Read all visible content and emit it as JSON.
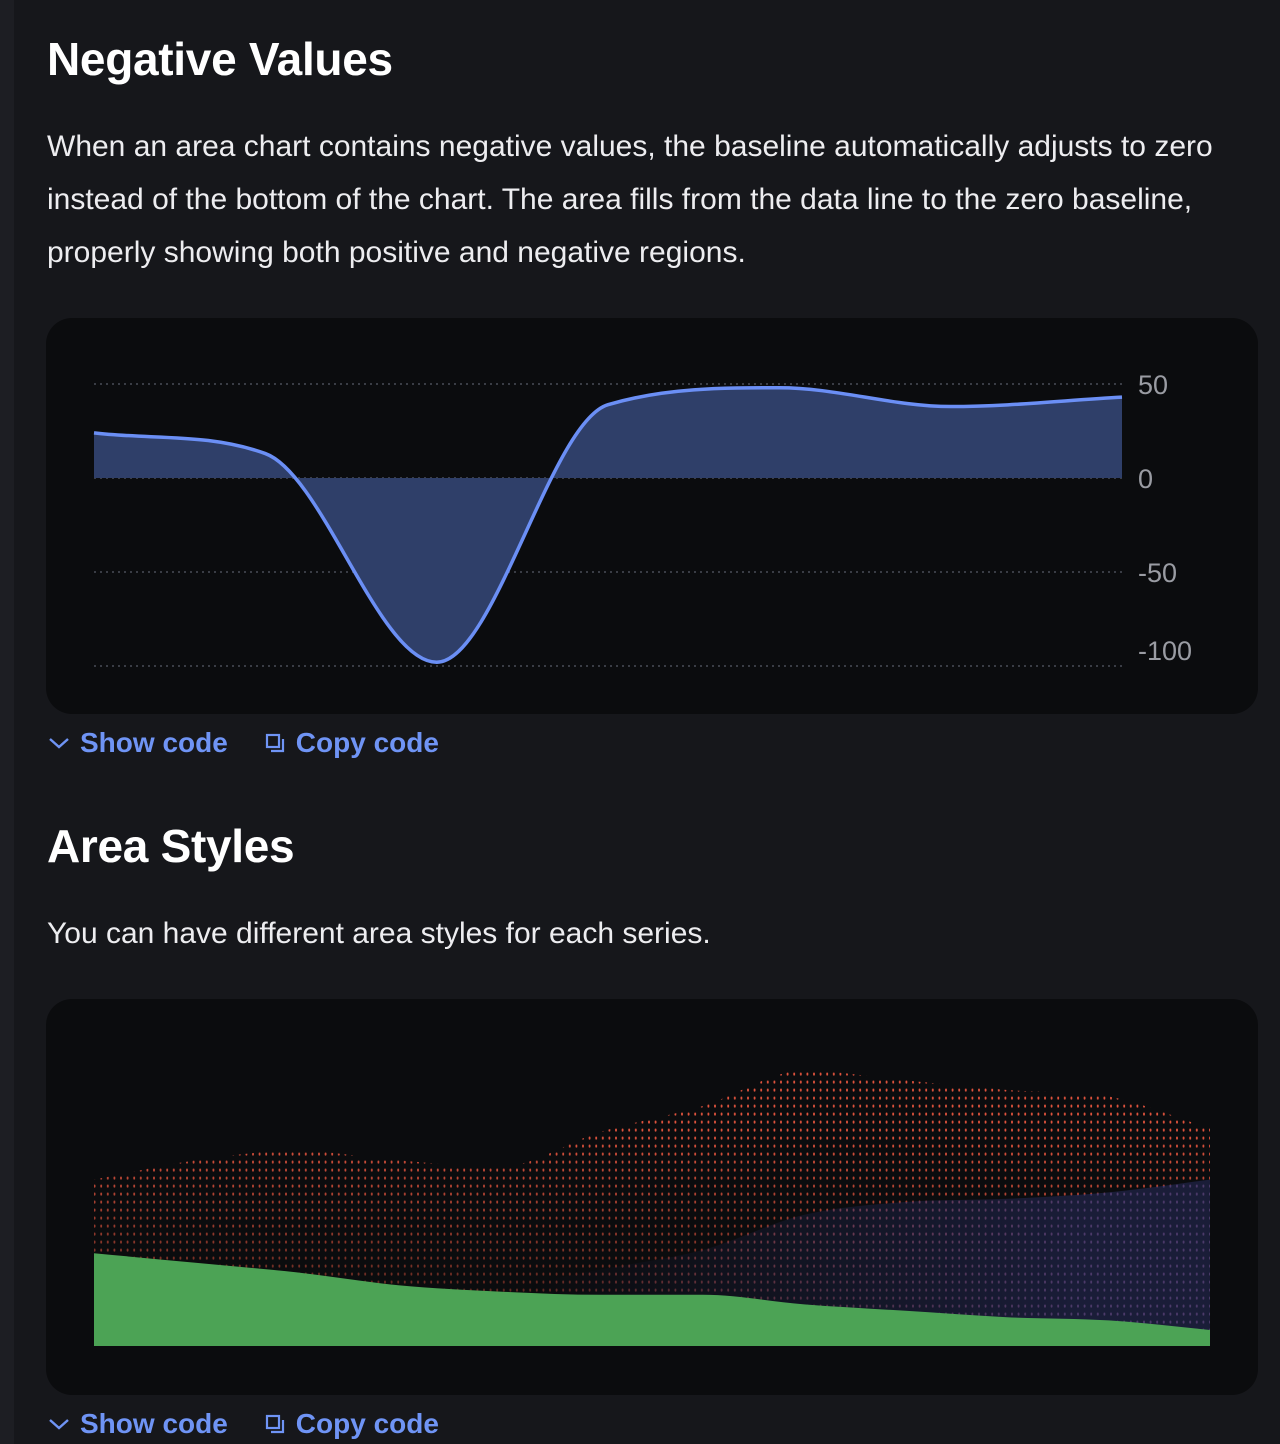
{
  "sections": [
    {
      "title": "Negative Values",
      "description": "When an area chart contains negative values, the baseline automatically adjusts to zero instead of the bottom of the chart. The area fills from the data line to the zero baseline, properly showing both positive and negative regions.",
      "show_code": "Show code",
      "copy_code": "Copy code"
    },
    {
      "title": "Area Styles",
      "description": "You can have different area styles for each series.",
      "show_code": "Show code",
      "copy_code": "Copy code"
    }
  ],
  "icons": {
    "show_code": "chevron-down-icon",
    "copy_code": "copy-icon"
  },
  "colors": {
    "link": "#6f94f5",
    "line": "#6b8ff5",
    "area": "#2f3f69",
    "red": "#e0533d",
    "blue": "#3a4a9a",
    "green": "#4ca355"
  },
  "chart_data": [
    {
      "type": "area",
      "curve": "monotone",
      "y_axis": {
        "position": "right",
        "ticks": [
          "50",
          "0",
          "-50",
          "-100"
        ],
        "tick_values": [
          50,
          0,
          -50,
          -100
        ]
      },
      "ylim": [
        -100,
        50
      ],
      "grid": "dotted-horizontal",
      "baseline": 0,
      "series": [
        {
          "values": [
            24,
            13,
            -98,
            39,
            48,
            38,
            43
          ]
        }
      ]
    },
    {
      "type": "area",
      "curve": "monotone",
      "axes": "none",
      "ylim": [
        0,
        100
      ],
      "series": [
        {
          "style": "dotted",
          "color": "#e0533d",
          "values": [
            52,
            58,
            61,
            58,
            56,
            67,
            75,
            86,
            83,
            80,
            78,
            68
          ]
        },
        {
          "style": "dotted-gradient",
          "color": "#3a4a9a",
          "values": [
            5,
            8,
            10,
            14,
            18,
            24,
            30,
            41,
            45,
            46,
            48,
            52
          ]
        },
        {
          "style": "solid",
          "color": "#4ca355",
          "values": [
            29,
            26,
            23,
            19,
            17,
            16,
            16,
            13,
            11,
            9,
            8,
            5
          ]
        }
      ]
    }
  ]
}
